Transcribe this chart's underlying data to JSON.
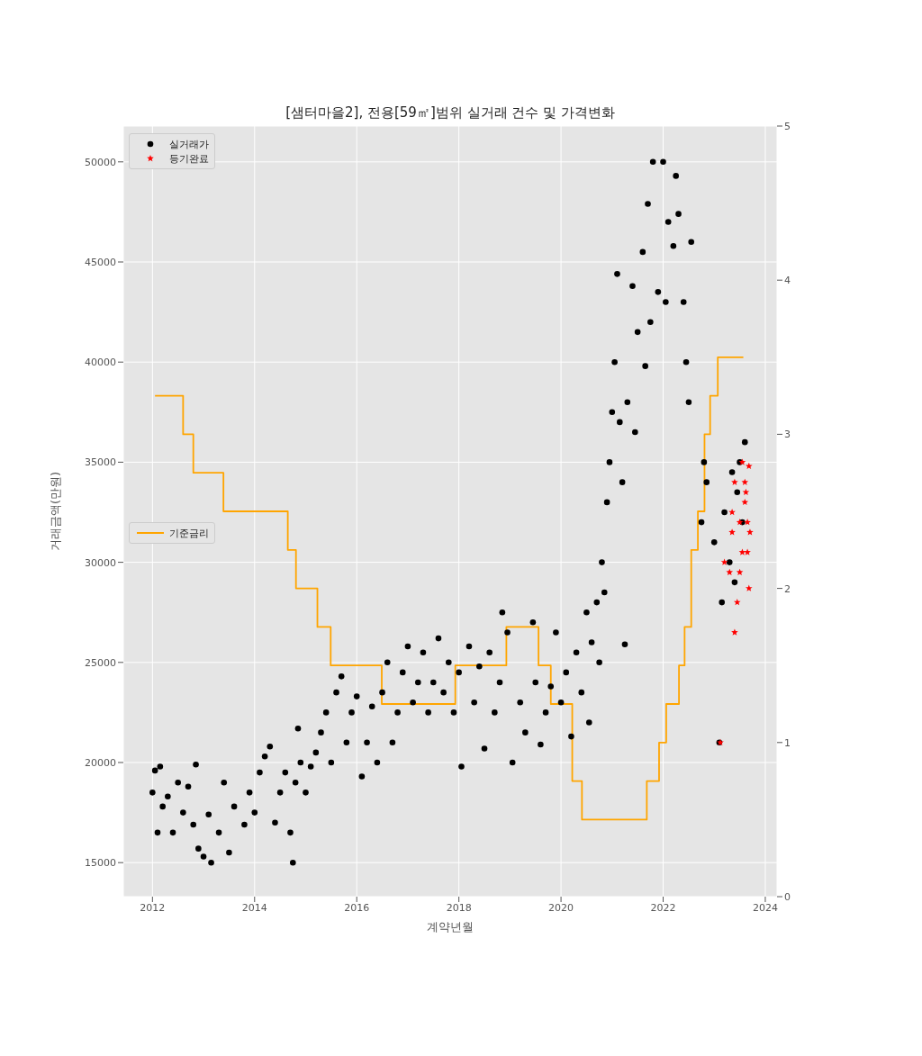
{
  "chart_data": {
    "type": "scatter",
    "title": "[샘터마을2], 전용[59㎡]범위 실거래 건수 및 가격변화",
    "xlabel": "계약년월",
    "ylabel": "거래금액(만원)",
    "xlim": [
      2011.43,
      2024.23
    ],
    "xticks": [
      2012,
      2014,
      2016,
      2018,
      2020,
      2022,
      2024
    ],
    "ylim": [
      13300,
      51790
    ],
    "yticks": [
      15000,
      20000,
      25000,
      30000,
      35000,
      40000,
      45000,
      50000
    ],
    "y2lim": [
      0,
      5
    ],
    "y2ticks": [
      0,
      1,
      2,
      3,
      4,
      5
    ],
    "grid": true,
    "legend": "top left",
    "series": [
      {
        "name": "실거래가",
        "marker": "circle",
        "color": "#000000",
        "x": [
          2012.0,
          2012.05,
          2012.1,
          2012.15,
          2012.2,
          2012.3,
          2012.4,
          2012.5,
          2012.6,
          2012.7,
          2012.8,
          2012.85,
          2012.9,
          2013.0,
          2013.1,
          2013.15,
          2013.3,
          2013.4,
          2013.5,
          2013.6,
          2013.8,
          2013.9,
          2014.0,
          2014.1,
          2014.2,
          2014.3,
          2014.4,
          2014.5,
          2014.6,
          2014.7,
          2014.75,
          2014.8,
          2014.85,
          2014.9,
          2015.0,
          2015.1,
          2015.2,
          2015.3,
          2015.4,
          2015.5,
          2015.6,
          2015.7,
          2015.8,
          2015.9,
          2016.0,
          2016.1,
          2016.2,
          2016.3,
          2016.4,
          2016.5,
          2016.6,
          2016.7,
          2016.8,
          2016.9,
          2017.0,
          2017.1,
          2017.2,
          2017.3,
          2017.4,
          2017.5,
          2017.6,
          2017.7,
          2017.8,
          2017.9,
          2018.0,
          2018.05,
          2018.2,
          2018.3,
          2018.4,
          2018.5,
          2018.6,
          2018.7,
          2018.8,
          2018.85,
          2018.95,
          2019.05,
          2019.2,
          2019.3,
          2019.45,
          2019.5,
          2019.6,
          2019.7,
          2019.8,
          2019.9,
          2020.0,
          2020.1,
          2020.2,
          2020.3,
          2020.4,
          2020.5,
          2020.55,
          2020.6,
          2020.7,
          2020.75,
          2020.8,
          2020.85,
          2020.9,
          2020.95,
          2021.0,
          2021.05,
          2021.1,
          2021.15,
          2021.2,
          2021.25,
          2021.3,
          2021.4,
          2021.45,
          2021.5,
          2021.6,
          2021.65,
          2021.7,
          2021.75,
          2021.8,
          2021.9,
          2022.0,
          2022.05,
          2022.1,
          2022.2,
          2022.25,
          2022.3,
          2022.4,
          2022.45,
          2022.5,
          2022.55,
          2022.75,
          2022.8,
          2022.85,
          2023.0,
          2023.1,
          2023.15,
          2023.2,
          2023.3,
          2023.35,
          2023.4,
          2023.45,
          2023.5,
          2023.55,
          2023.6
        ],
        "values": [
          18500,
          19600,
          16500,
          19800,
          17800,
          18300,
          16500,
          19000,
          17500,
          18800,
          16900,
          19900,
          15700,
          15300,
          17400,
          15000,
          16500,
          19000,
          15500,
          17800,
          16900,
          18500,
          17500,
          19500,
          20300,
          20800,
          17000,
          18500,
          19500,
          16500,
          15000,
          19000,
          21700,
          20000,
          18500,
          19800,
          20500,
          21500,
          22500,
          20000,
          23500,
          24300,
          21000,
          22500,
          23300,
          19300,
          21000,
          22800,
          20000,
          23500,
          25000,
          21000,
          22500,
          24500,
          25800,
          23000,
          24000,
          25500,
          22500,
          24000,
          26200,
          23500,
          25000,
          22500,
          24500,
          19800,
          25800,
          23000,
          24800,
          20700,
          25500,
          22500,
          24000,
          27500,
          26500,
          20000,
          23000,
          21500,
          27000,
          24000,
          20900,
          22500,
          23800,
          26500,
          23000,
          24500,
          21300,
          25500,
          23500,
          27500,
          22000,
          26000,
          28000,
          25000,
          30000,
          28500,
          33000,
          35000,
          37500,
          40000,
          44400,
          37000,
          34000,
          25900,
          38000,
          43800,
          36500,
          41500,
          45500,
          39800,
          47900,
          42000,
          50000,
          43500,
          50000,
          43000,
          47000,
          45800,
          49300,
          47400,
          43000,
          40000,
          38000,
          46000,
          32000,
          35000,
          34000,
          31000,
          21000,
          28000,
          32500,
          30000,
          34500,
          29000,
          33500,
          35000,
          32000,
          36000
        ]
      },
      {
        "name": "등기완료",
        "marker": "star",
        "color": "#ff0000",
        "x": [
          2023.12,
          2023.2,
          2023.3,
          2023.35,
          2023.4,
          2023.45,
          2023.5,
          2023.55,
          2023.6,
          2023.62,
          2023.65,
          2023.7,
          2023.5,
          2023.55,
          2023.68,
          2023.6,
          2023.65,
          2023.68,
          2023.4,
          2023.35
        ],
        "values": [
          21000,
          30000,
          29500,
          32500,
          34000,
          28000,
          32000,
          35000,
          34000,
          33500,
          32000,
          31500,
          29500,
          30500,
          28700,
          33000,
          30500,
          34800,
          26500,
          31500
        ]
      },
      {
        "name": "기준금리",
        "type": "step",
        "axis": "y2",
        "color": "#ffa500",
        "x": [
          2012.05,
          2012.6,
          2012.8,
          2013.39,
          2014.65,
          2014.81,
          2015.23,
          2015.49,
          2016.49,
          2017.93,
          2018.93,
          2019.56,
          2019.8,
          2020.22,
          2020.41,
          2021.68,
          2021.92,
          2022.06,
          2022.31,
          2022.42,
          2022.55,
          2022.68,
          2022.81,
          2022.92,
          2023.07,
          2023.57
        ],
        "values": [
          3.25,
          3.0,
          2.75,
          2.5,
          2.25,
          2.0,
          1.75,
          1.5,
          1.25,
          1.5,
          1.75,
          1.5,
          1.25,
          0.75,
          0.5,
          0.75,
          1.0,
          1.25,
          1.5,
          1.75,
          2.25,
          2.5,
          3.0,
          3.25,
          3.5,
          3.5
        ]
      }
    ]
  }
}
